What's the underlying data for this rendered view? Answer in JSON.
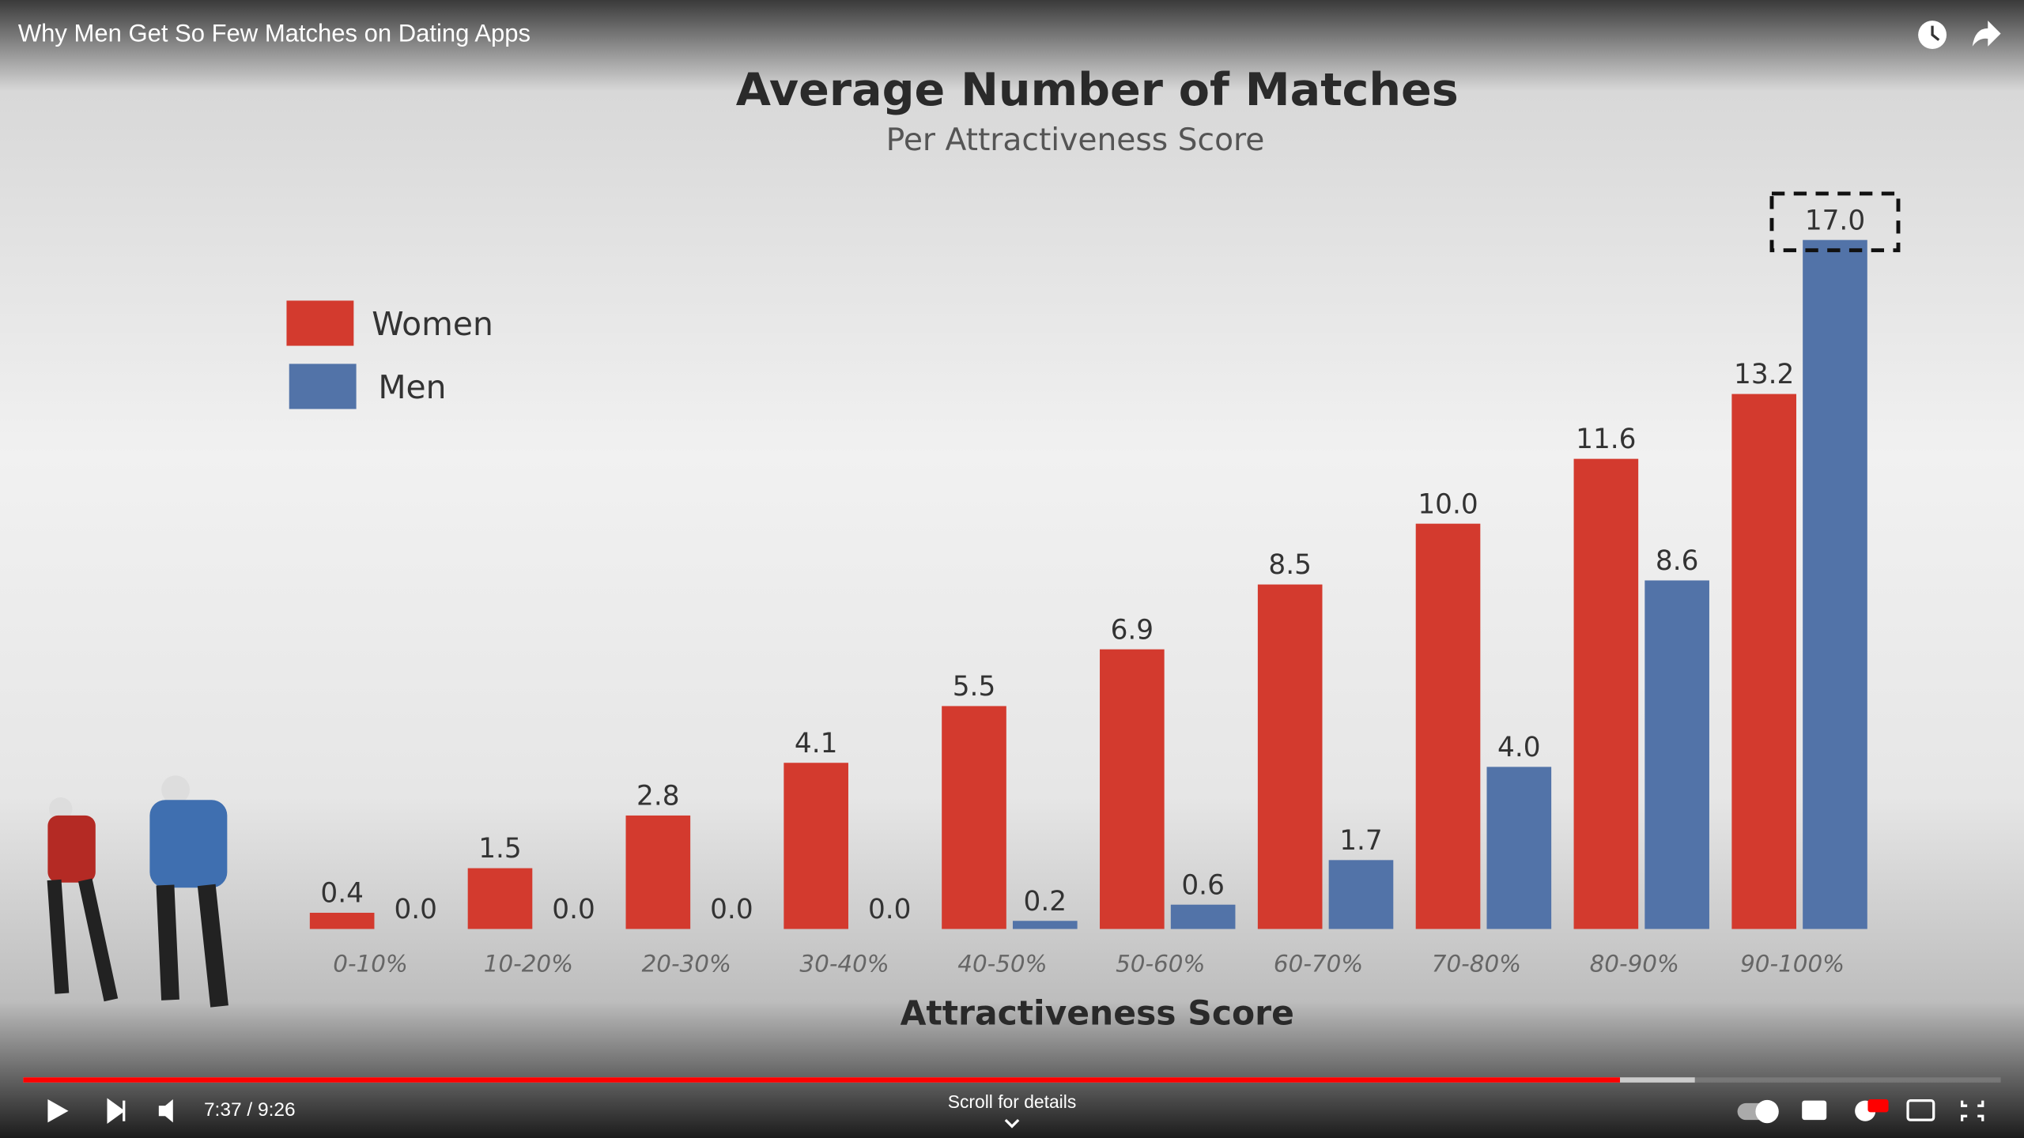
{
  "video": {
    "title": "Why Men Get So Few Matches on Dating Apps",
    "time": "7:37 / 9:26",
    "hint": "Scroll for details"
  },
  "chart_data": {
    "type": "bar",
    "title": "Average Number of Matches",
    "subtitle": "Per Attractiveness Score",
    "x_label": "Attractiveness Score",
    "categories": [
      "0-10%",
      "10-20%",
      "20-30%",
      "30-40%",
      "40-50%",
      "50-60%",
      "60-70%",
      "70-80%",
      "80-90%",
      "90-100%"
    ],
    "series": [
      {
        "name": "Women",
        "color": "#d33a2e",
        "values": [
          0.4,
          1.5,
          2.8,
          4.1,
          5.5,
          6.9,
          8.5,
          10.0,
          11.6,
          13.2
        ],
        "value_labels": [
          "0.4",
          "1.5",
          "2.8",
          "4.1",
          "5.5",
          "6.9",
          "8.5",
          "10.0",
          "11.6",
          "13.2"
        ]
      },
      {
        "name": "Men",
        "color": "#5273a8",
        "values": [
          0.0,
          0.0,
          0.0,
          0.0,
          0.2,
          0.6,
          1.7,
          4.0,
          8.6,
          17.0
        ],
        "value_labels": [
          "0.0",
          "0.0",
          "0.0",
          "0.0",
          "0.2",
          "0.6",
          "1.7",
          "4.0",
          "8.6",
          "17.0"
        ]
      }
    ],
    "legend": "upper left"
  }
}
